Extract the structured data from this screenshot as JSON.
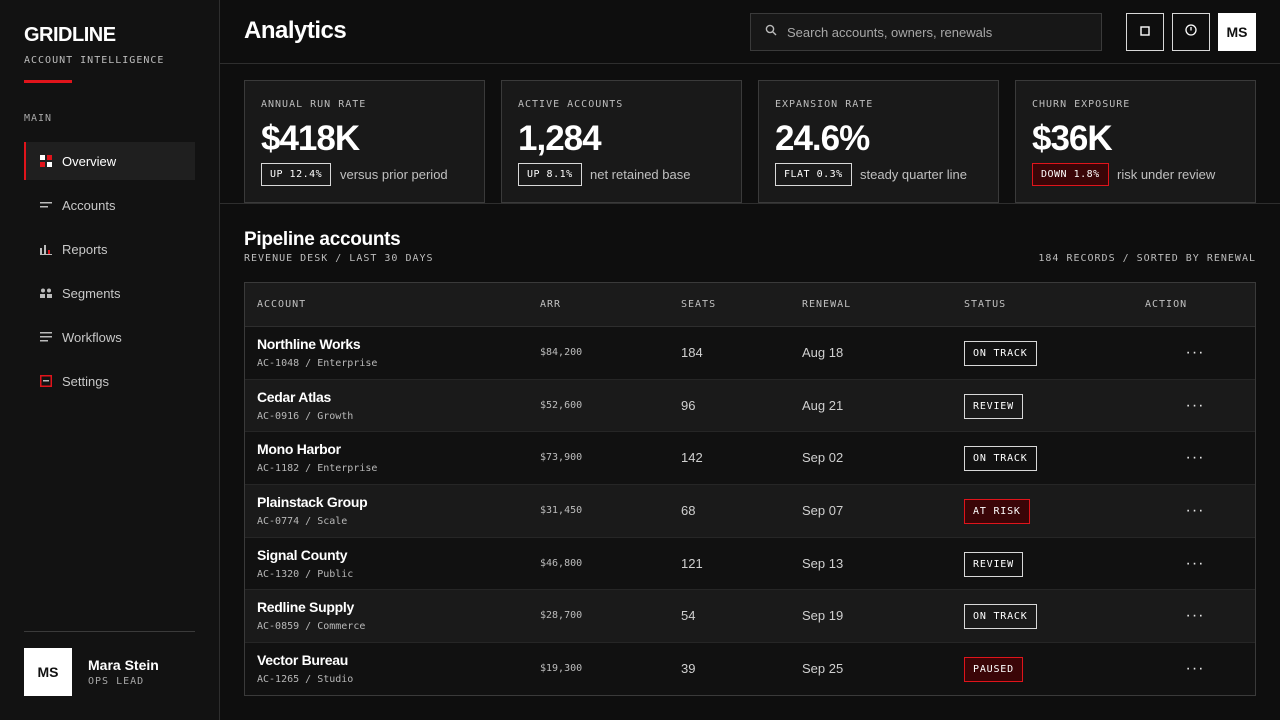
{
  "sidebar": {
    "brand": "GRIDLINE",
    "brand_sub": "ACCOUNT INTELLIGENCE",
    "section": "MAIN",
    "items": [
      {
        "label": "Overview",
        "icon": "grid-icon",
        "active": true
      },
      {
        "label": "Accounts",
        "icon": "lines-icon"
      },
      {
        "label": "Reports",
        "icon": "bar-chart-icon"
      },
      {
        "label": "Segments",
        "icon": "users-icon"
      },
      {
        "label": "Workflows",
        "icon": "list-icon"
      },
      {
        "label": "Settings",
        "icon": "window-icon"
      }
    ],
    "user": {
      "initials": "MS",
      "name": "Mara Stein",
      "role": "OPS LEAD"
    }
  },
  "header": {
    "title": "Analytics",
    "search_placeholder": "Search accounts, owners, renewals",
    "avatar": "MS"
  },
  "kpis": [
    {
      "label": "ANNUAL RUN RATE",
      "value": "$418K",
      "badge": "UP 12.4%",
      "note": "versus prior period",
      "tone": "neutral"
    },
    {
      "label": "ACTIVE ACCOUNTS",
      "value": "1,284",
      "badge": "UP 8.1%",
      "note": "net retained base",
      "tone": "neutral"
    },
    {
      "label": "EXPANSION RATE",
      "value": "24.6%",
      "badge": "FLAT 0.3%",
      "note": "steady quarter line",
      "tone": "neutral"
    },
    {
      "label": "CHURN EXPOSURE",
      "value": "$36K",
      "badge": "DOWN 1.8%",
      "note": "risk under review",
      "tone": "red"
    }
  ],
  "pipeline": {
    "title": "Pipeline accounts",
    "subtitle": "REVENUE DESK / LAST 30 DAYS",
    "meta": "184 RECORDS / SORTED BY RENEWAL",
    "columns": [
      "ACCOUNT",
      "ARR",
      "SEATS",
      "RENEWAL",
      "STATUS",
      "ACTION"
    ],
    "rows": [
      {
        "name": "Northline Works",
        "id": "AC-1048 / Enterprise",
        "arr": "$84,200",
        "seats": "184",
        "renewal": "Aug 18",
        "status": "ON TRACK",
        "tone": "neutral"
      },
      {
        "name": "Cedar Atlas",
        "id": "AC-0916 / Growth",
        "arr": "$52,600",
        "seats": "96",
        "renewal": "Aug 21",
        "status": "REVIEW",
        "tone": "neutral"
      },
      {
        "name": "Mono Harbor",
        "id": "AC-1182 / Enterprise",
        "arr": "$73,900",
        "seats": "142",
        "renewal": "Sep 02",
        "status": "ON TRACK",
        "tone": "neutral"
      },
      {
        "name": "Plainstack Group",
        "id": "AC-0774 / Scale",
        "arr": "$31,450",
        "seats": "68",
        "renewal": "Sep 07",
        "status": "AT RISK",
        "tone": "red"
      },
      {
        "name": "Signal County",
        "id": "AC-1320 / Public",
        "arr": "$46,800",
        "seats": "121",
        "renewal": "Sep 13",
        "status": "REVIEW",
        "tone": "neutral"
      },
      {
        "name": "Redline Supply",
        "id": "AC-0859 / Commerce",
        "arr": "$28,700",
        "seats": "54",
        "renewal": "Sep 19",
        "status": "ON TRACK",
        "tone": "neutral"
      },
      {
        "name": "Vector Bureau",
        "id": "AC-1265 / Studio",
        "arr": "$19,300",
        "seats": "39",
        "renewal": "Sep 25",
        "status": "PAUSED",
        "tone": "red"
      }
    ],
    "action_glyph": "···"
  },
  "colors": {
    "accent": "#e0141b",
    "bg": "#0e0e0e",
    "panel": "#191919"
  }
}
